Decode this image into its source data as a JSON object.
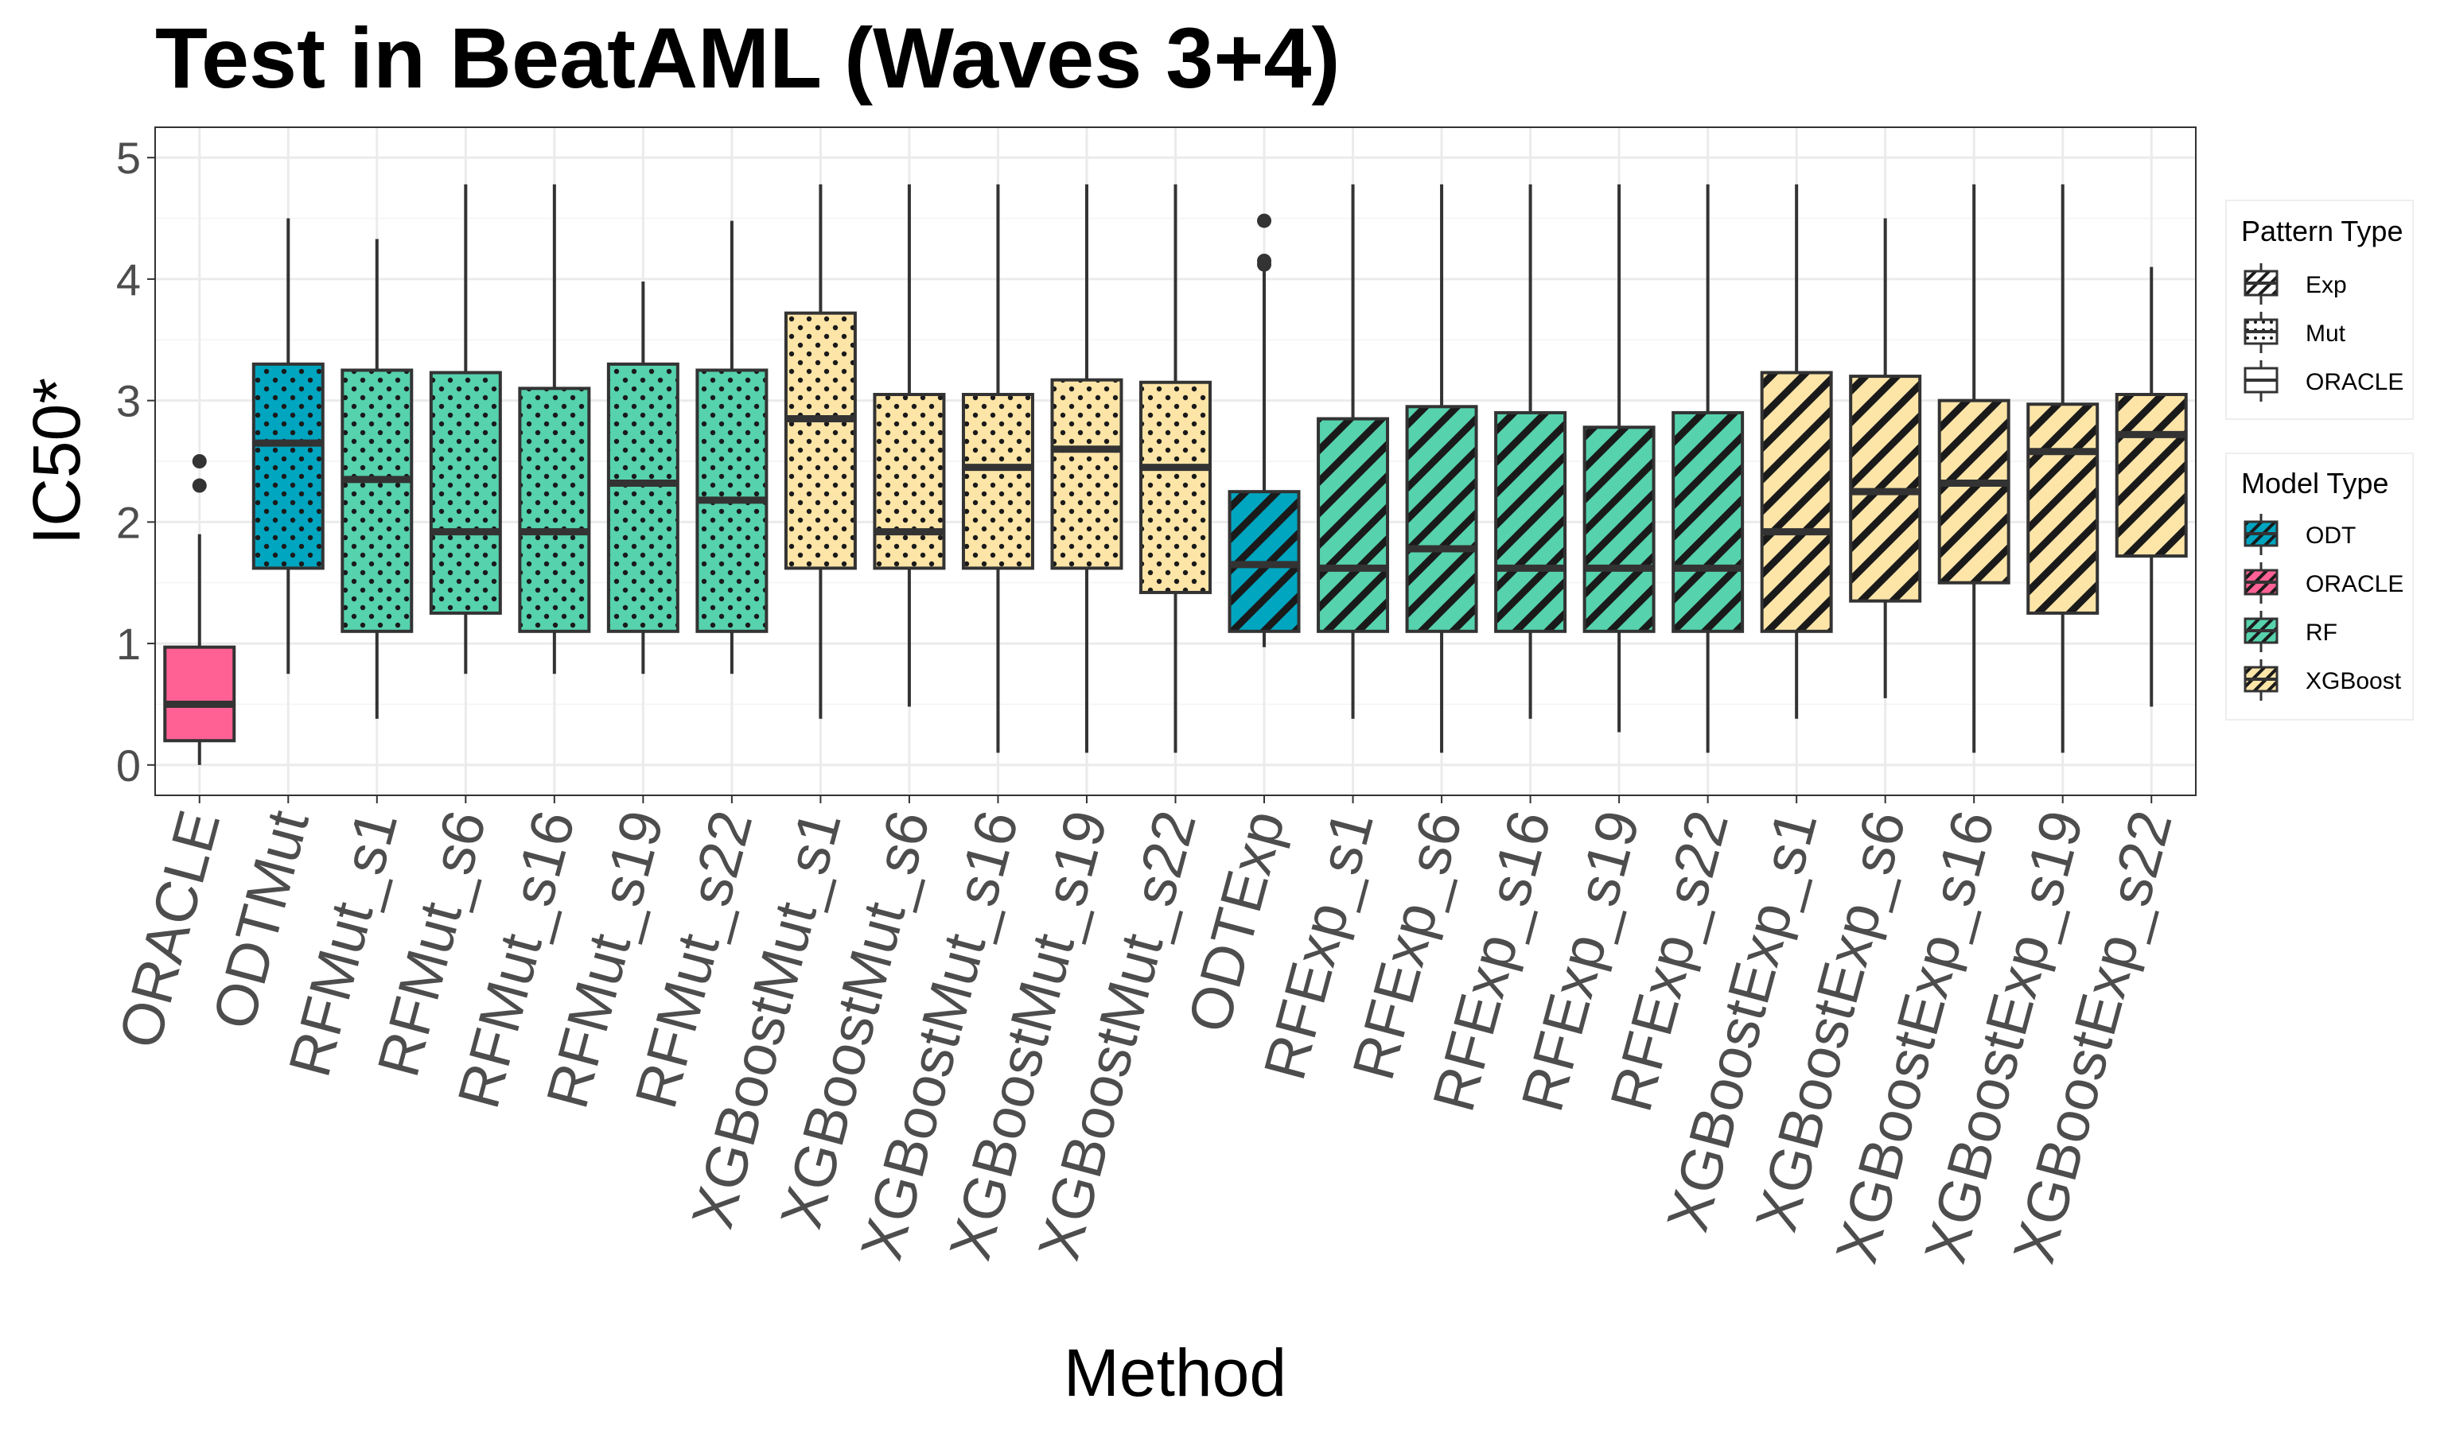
{
  "chart_data": {
    "type": "boxplot",
    "title": "Test in BeatAML (Waves 3+4)",
    "xlabel": "Method",
    "ylabel": "IC50*",
    "ylim": [
      -0.25,
      5.25
    ],
    "yticks": [
      0,
      1,
      2,
      3,
      4,
      5
    ],
    "colors": {
      "ODT": "#00a5c0",
      "ORACLE": "#ff6195",
      "RF": "#56d2ad",
      "XGBoost": "#fde5a8"
    },
    "legends": {
      "pattern": {
        "title": "Pattern Type",
        "items": [
          "Exp",
          "Mut",
          "ORACLE"
        ]
      },
      "model": {
        "title": "Model Type",
        "items": [
          "ODT",
          "ORACLE",
          "RF",
          "XGBoost"
        ]
      }
    },
    "boxes": [
      {
        "label": "ORACLE",
        "model": "ORACLE",
        "pattern": "ORACLE",
        "min": 0.0,
        "q1": 0.2,
        "median": 0.5,
        "q3": 0.97,
        "max": 1.9,
        "outliers": [
          2.3,
          2.5
        ]
      },
      {
        "label": "ODTMut",
        "model": "ODT",
        "pattern": "Mut",
        "min": 0.75,
        "q1": 1.62,
        "median": 2.65,
        "q3": 3.3,
        "max": 4.5,
        "outliers": []
      },
      {
        "label": "RFMut_s1",
        "model": "RF",
        "pattern": "Mut",
        "min": 0.38,
        "q1": 1.1,
        "median": 2.35,
        "q3": 3.25,
        "max": 4.33,
        "outliers": []
      },
      {
        "label": "RFMut_s6",
        "model": "RF",
        "pattern": "Mut",
        "min": 0.75,
        "q1": 1.25,
        "median": 1.92,
        "q3": 3.23,
        "max": 4.78,
        "outliers": []
      },
      {
        "label": "RFMut_s16",
        "model": "RF",
        "pattern": "Mut",
        "min": 0.75,
        "q1": 1.1,
        "median": 1.92,
        "q3": 3.1,
        "max": 4.78,
        "outliers": []
      },
      {
        "label": "RFMut_s19",
        "model": "RF",
        "pattern": "Mut",
        "min": 0.75,
        "q1": 1.1,
        "median": 2.32,
        "q3": 3.3,
        "max": 3.98,
        "outliers": []
      },
      {
        "label": "RFMut_s22",
        "model": "RF",
        "pattern": "Mut",
        "min": 0.75,
        "q1": 1.1,
        "median": 2.18,
        "q3": 3.25,
        "max": 4.48,
        "outliers": []
      },
      {
        "label": "XGBoostMut_s1",
        "model": "XGBoost",
        "pattern": "Mut",
        "min": 0.38,
        "q1": 1.62,
        "median": 2.85,
        "q3": 3.72,
        "max": 4.78,
        "outliers": []
      },
      {
        "label": "XGBoostMut_s6",
        "model": "XGBoost",
        "pattern": "Mut",
        "min": 0.48,
        "q1": 1.62,
        "median": 1.92,
        "q3": 3.05,
        "max": 4.78,
        "outliers": []
      },
      {
        "label": "XGBoostMut_s16",
        "model": "XGBoost",
        "pattern": "Mut",
        "min": 0.1,
        "q1": 1.62,
        "median": 2.45,
        "q3": 3.05,
        "max": 4.78,
        "outliers": []
      },
      {
        "label": "XGBoostMut_s19",
        "model": "XGBoost",
        "pattern": "Mut",
        "min": 0.1,
        "q1": 1.62,
        "median": 2.6,
        "q3": 3.17,
        "max": 4.78,
        "outliers": []
      },
      {
        "label": "XGBoostMut_s22",
        "model": "XGBoost",
        "pattern": "Mut",
        "min": 0.1,
        "q1": 1.42,
        "median": 2.45,
        "q3": 3.15,
        "max": 4.78,
        "outliers": []
      },
      {
        "label": "ODTExp",
        "model": "ODT",
        "pattern": "Exp",
        "min": 0.97,
        "q1": 1.1,
        "median": 1.65,
        "q3": 2.25,
        "max": 4.1,
        "outliers": [
          4.12,
          4.15,
          4.48
        ]
      },
      {
        "label": "RFExp_s1",
        "model": "RF",
        "pattern": "Exp",
        "min": 0.38,
        "q1": 1.1,
        "median": 1.62,
        "q3": 2.85,
        "max": 4.78,
        "outliers": []
      },
      {
        "label": "RFExp_s6",
        "model": "RF",
        "pattern": "Exp",
        "min": 0.1,
        "q1": 1.1,
        "median": 1.78,
        "q3": 2.95,
        "max": 4.78,
        "outliers": []
      },
      {
        "label": "RFExp_s16",
        "model": "RF",
        "pattern": "Exp",
        "min": 0.38,
        "q1": 1.1,
        "median": 1.62,
        "q3": 2.9,
        "max": 4.78,
        "outliers": []
      },
      {
        "label": "RFExp_s19",
        "model": "RF",
        "pattern": "Exp",
        "min": 0.27,
        "q1": 1.1,
        "median": 1.62,
        "q3": 2.78,
        "max": 4.78,
        "outliers": []
      },
      {
        "label": "RFExp_s22",
        "model": "RF",
        "pattern": "Exp",
        "min": 0.1,
        "q1": 1.1,
        "median": 1.62,
        "q3": 2.9,
        "max": 4.78,
        "outliers": []
      },
      {
        "label": "XGBoostExp_s1",
        "model": "XGBoost",
        "pattern": "Exp",
        "min": 0.38,
        "q1": 1.1,
        "median": 1.92,
        "q3": 3.23,
        "max": 4.78,
        "outliers": []
      },
      {
        "label": "XGBoostExp_s6",
        "model": "XGBoost",
        "pattern": "Exp",
        "min": 0.55,
        "q1": 1.35,
        "median": 2.25,
        "q3": 3.2,
        "max": 4.5,
        "outliers": []
      },
      {
        "label": "XGBoostExp_s16",
        "model": "XGBoost",
        "pattern": "Exp",
        "min": 0.1,
        "q1": 1.5,
        "median": 2.32,
        "q3": 3.0,
        "max": 4.78,
        "outliers": []
      },
      {
        "label": "XGBoostExp_s19",
        "model": "XGBoost",
        "pattern": "Exp",
        "min": 0.1,
        "q1": 1.25,
        "median": 2.58,
        "q3": 2.97,
        "max": 4.78,
        "outliers": []
      },
      {
        "label": "XGBoostExp_s22",
        "model": "XGBoost",
        "pattern": "Exp",
        "min": 0.48,
        "q1": 1.72,
        "median": 2.72,
        "q3": 3.05,
        "max": 4.1,
        "outliers": []
      }
    ]
  }
}
